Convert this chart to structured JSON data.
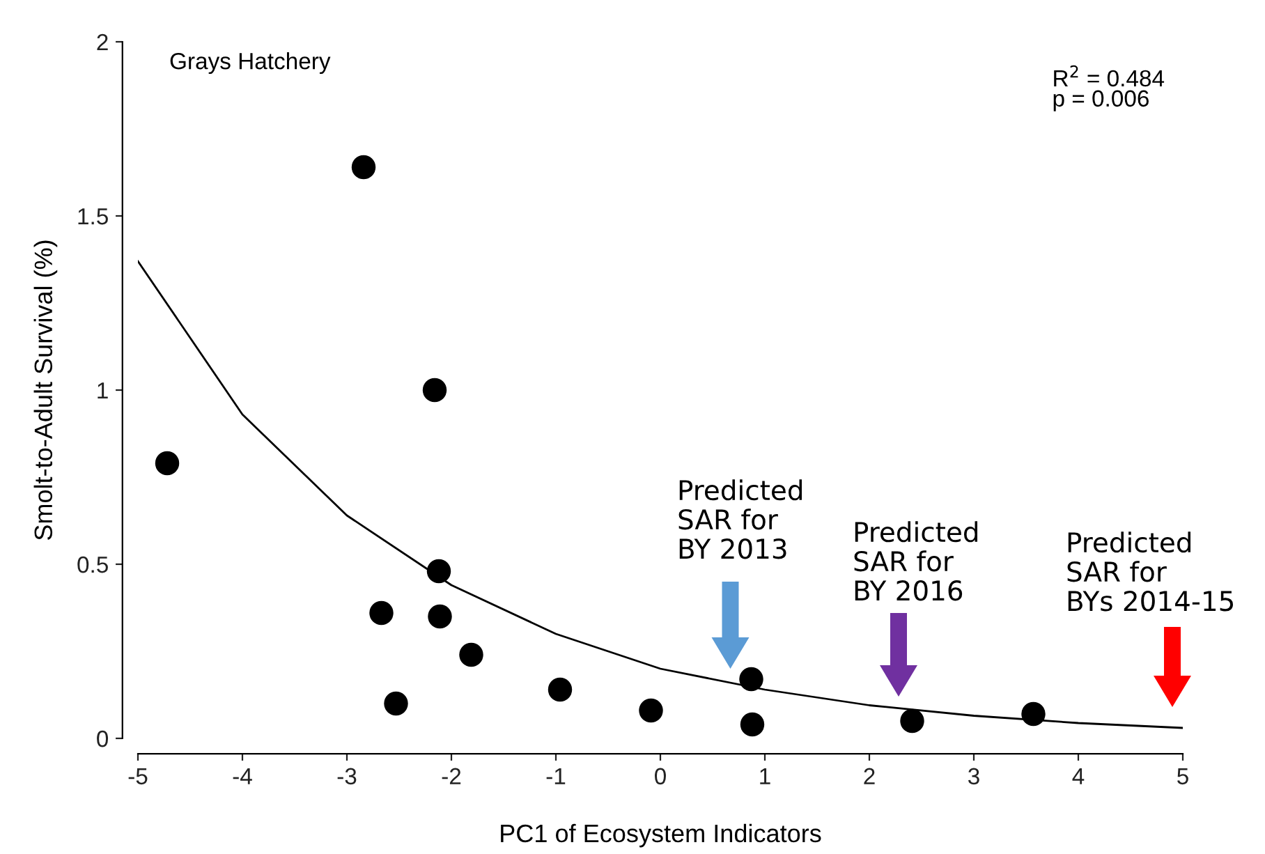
{
  "chart_data": {
    "type": "scatter",
    "title": "Grays Hatchery",
    "xlabel": "PC1 of Ecosystem Indicators",
    "ylabel": "Smolt-to-Adult Survival (%)",
    "xlim": [
      -5,
      5
    ],
    "ylim": [
      0,
      2
    ],
    "xticks": [
      -5,
      -4,
      -3,
      -2,
      -1,
      0,
      1,
      2,
      3,
      4,
      5
    ],
    "yticks": [
      0,
      0.5,
      1,
      1.5,
      2
    ],
    "grid": false,
    "series": [
      {
        "color": "#000000",
        "marker": "circle",
        "x": [
          -4.72,
          -2.84,
          -2.16,
          -2.12,
          -2.11,
          -2.67,
          -1.81,
          -2.53,
          -0.96,
          -0.09,
          0.87,
          0.88,
          2.41,
          3.57
        ],
        "values": [
          0.79,
          1.64,
          1.0,
          0.48,
          0.35,
          0.36,
          0.24,
          0.1,
          0.14,
          0.08,
          0.17,
          0.04,
          0.05,
          0.07
        ]
      },
      {
        "type": "line",
        "marker": "none",
        "color": "#000000",
        "x": [
          -5,
          -4,
          -3,
          -2,
          -1,
          0,
          1,
          2,
          3,
          4,
          5
        ],
        "values": [
          1.37,
          0.93,
          0.64,
          0.44,
          0.3,
          0.2,
          0.14,
          0.095,
          0.065,
          0.044,
          0.03
        ]
      }
    ],
    "annotations": [
      "Predicted\nSAR for\nBY 2013",
      "Predicted\nSAR for\nBY 2016",
      "Predicted\nSAR for\nBYs 2014-15",
      "R$^{2}$ = 0.484\np = 0.006"
    ]
  }
}
